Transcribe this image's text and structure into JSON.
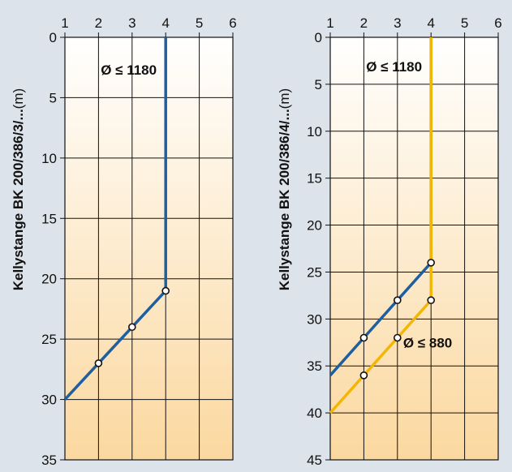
{
  "chart_data": [
    {
      "type": "line",
      "ylabel_bold": "Kellystange BK 200/386/3/...",
      "ylabel_unit": "(m)",
      "xlim": [
        1,
        6
      ],
      "ylim": [
        0,
        35
      ],
      "x_ticks": [
        "1",
        "2",
        "3",
        "4",
        "5",
        "6"
      ],
      "y_ticks": [
        "0",
        "5",
        "10",
        "15",
        "20",
        "25",
        "30",
        "35"
      ],
      "y_inverted": true,
      "grid": true,
      "background": "gradient white-to-peach (top to bottom)",
      "annotations": [
        {
          "text": "Ø ≤ 1180",
          "x": 2.9,
          "y": 2.7
        }
      ],
      "series": [
        {
          "color": "#1f5f9f",
          "x": [
            4,
            4,
            3,
            2,
            1
          ],
          "y": [
            0,
            21,
            24,
            27,
            30
          ],
          "markers": [
            [
              4,
              21
            ],
            [
              3,
              24
            ],
            [
              2,
              27
            ]
          ]
        }
      ]
    },
    {
      "type": "line",
      "ylabel_bold": "Kellystange BK 200/386/4/...",
      "ylabel_unit": "(m)",
      "xlim": [
        1,
        6
      ],
      "ylim": [
        0,
        45
      ],
      "x_ticks": [
        "1",
        "2",
        "3",
        "4",
        "5",
        "6"
      ],
      "y_ticks": [
        "0",
        "5",
        "10",
        "15",
        "20",
        "25",
        "30",
        "35",
        "40",
        "45"
      ],
      "y_inverted": true,
      "grid": true,
      "background": "gradient white-to-peach (top to bottom)",
      "annotations": [
        {
          "text": "Ø ≤ 1180",
          "x": 2.9,
          "y": 3.1
        },
        {
          "text": "Ø ≤ 880",
          "x": 3.9,
          "y": 32.5
        }
      ],
      "series": [
        {
          "color": "#1f5f9f",
          "x": [
            4,
            4,
            3,
            2,
            1
          ],
          "y": [
            0,
            24,
            28,
            32,
            36
          ],
          "markers": [
            [
              4,
              24
            ],
            [
              3,
              28
            ],
            [
              2,
              32
            ]
          ]
        },
        {
          "color": "#f2b705",
          "x": [
            4,
            4,
            3,
            2,
            1
          ],
          "y": [
            0,
            28,
            32,
            36,
            40
          ],
          "markers": [
            [
              4,
              28
            ],
            [
              3,
              32
            ],
            [
              2,
              36
            ]
          ]
        }
      ]
    }
  ]
}
